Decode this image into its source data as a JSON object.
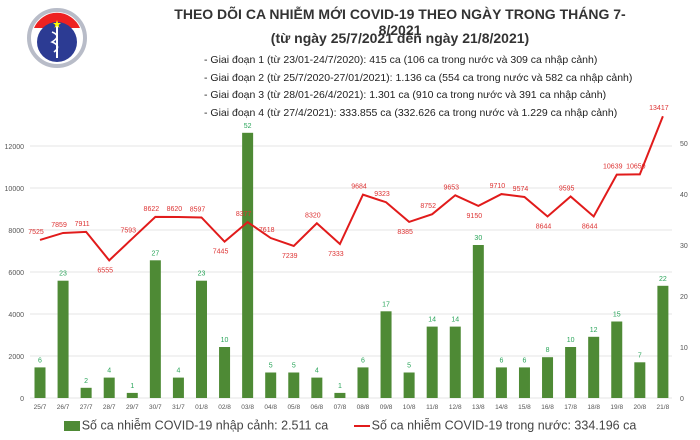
{
  "header": {
    "logo_text": "BỘ Y TẾ - MINISTRY OF HEALTH",
    "title": "THEO DÕI CA NHIỄM MỚI COVID-19 THEO NGÀY TRONG THÁNG 7-8/2021",
    "subtitle": "(từ ngày 25/7/2021 đến ngày 21/8/2021)",
    "notes": [
      "- Giai đoạn 1 (từ 23/01-24/7/2020): 415 ca (106 ca trong nước và 309 ca nhập cảnh)",
      "- Giai đoạn 2 (từ 25/7/2020-27/01/2021): 1.136 ca (554 ca trong nước và 582 ca nhập cảnh)",
      "- Giai đoạn 3 (từ 28/01-26/4/2021): 1.301 ca (910 ca trong nước và 391 ca nhập cảnh)",
      "- Giai đoạn 4 (từ 27/4/2021): 333.855 ca (332.626 ca trong nước và 1.229 ca nhập cảnh)"
    ]
  },
  "chart_data": {
    "type": "bar+line",
    "categories": [
      "25/7",
      "26/7",
      "27/7",
      "28/7",
      "29/7",
      "30/7",
      "31/7",
      "01/8",
      "02/8",
      "03/8",
      "04/8",
      "05/8",
      "06/8",
      "07/8",
      "08/8",
      "09/8",
      "10/8",
      "11/8",
      "12/8",
      "13/8",
      "14/8",
      "15/8",
      "16/8",
      "17/8",
      "18/8",
      "19/8",
      "20/8",
      "21/8"
    ],
    "series": [
      {
        "name": "Số ca nhiễm COVID-19 nhập cảnh: 2.511 ca",
        "type": "bar",
        "axis": "right",
        "color": "#4e8a35",
        "values": [
          6,
          23,
          2,
          4,
          1,
          27,
          4,
          23,
          10,
          52,
          5,
          5,
          4,
          1,
          6,
          17,
          5,
          14,
          14,
          30,
          6,
          6,
          8,
          10,
          12,
          15,
          7,
          22
        ]
      },
      {
        "name": "Số ca nhiễm COVID-19 trong nước: 334.196 ca",
        "type": "line",
        "axis": "left",
        "color": "#e11b1b",
        "values": [
          7525,
          7859,
          7911,
          6555,
          7593,
          8622,
          8620,
          8597,
          7445,
          8377,
          7618,
          7239,
          8320,
          7333,
          9684,
          9323,
          8385,
          8752,
          9653,
          9150,
          9710,
          9574,
          8644,
          9595,
          8644,
          10639,
          10650,
          13417
        ]
      }
    ],
    "left_axis": {
      "ticks": [
        0,
        2000,
        4000,
        6000,
        8000,
        10000,
        12000
      ]
    },
    "right_axis": {
      "ticks": [
        0,
        10,
        20,
        30,
        40,
        50
      ]
    },
    "grid": true,
    "legend": "bottom"
  }
}
